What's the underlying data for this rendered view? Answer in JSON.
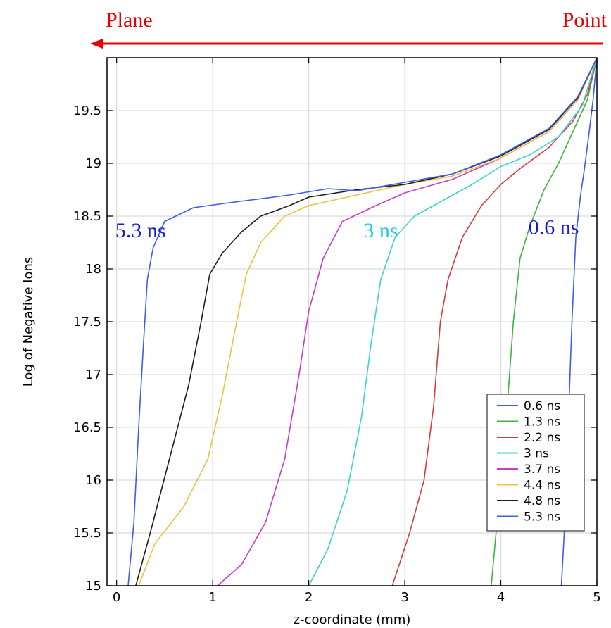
{
  "header": {
    "left_label": "Plane",
    "right_label": "Point",
    "label_color": "#e60000",
    "arrow_color": "#e60000"
  },
  "annotations": [
    {
      "text": "5.3 ns",
      "color": "#1a1ad6",
      "x": 0.25,
      "y": 18.3
    },
    {
      "text": "3 ns",
      "color": "#1ec8e6",
      "x": 2.75,
      "y": 18.3
    },
    {
      "text": "0.6 ns",
      "color": "#1a1ad6",
      "x": 4.55,
      "y": 18.33
    }
  ],
  "chart_data": {
    "type": "line",
    "title": "",
    "xlabel": "z-coordinate (mm)",
    "ylabel": "Log of Negative Ions",
    "xlim": [
      -0.1,
      5
    ],
    "ylim": [
      15,
      20
    ],
    "xticks": [
      0,
      1,
      2,
      3,
      4,
      5
    ],
    "yticks": [
      15,
      15.5,
      16,
      16.5,
      17,
      17.5,
      18,
      18.5,
      19,
      19.5
    ],
    "grid": true,
    "legend_position": "bottom-right",
    "series": [
      {
        "name": "0.6 ns",
        "color": "#3c5ee8",
        "points": [
          [
            4.63,
            15
          ],
          [
            4.66,
            15.5
          ],
          [
            4.7,
            16.5
          ],
          [
            4.74,
            17.5
          ],
          [
            4.78,
            18.3
          ],
          [
            4.83,
            18.7
          ],
          [
            4.87,
            18.95
          ],
          [
            4.92,
            19.3
          ],
          [
            4.96,
            19.6
          ],
          [
            5.0,
            20.0
          ]
        ]
      },
      {
        "name": "1.3 ns",
        "color": "#3cb43c",
        "points": [
          [
            3.9,
            15
          ],
          [
            3.95,
            15.5
          ],
          [
            4.05,
            16.5
          ],
          [
            4.13,
            17.5
          ],
          [
            4.2,
            18.1
          ],
          [
            4.3,
            18.4
          ],
          [
            4.45,
            18.75
          ],
          [
            4.6,
            19.0
          ],
          [
            4.75,
            19.3
          ],
          [
            4.9,
            19.6
          ],
          [
            5.0,
            20.0
          ]
        ]
      },
      {
        "name": "2.2 ns",
        "color": "#d43c3c",
        "points": [
          [
            2.87,
            15
          ],
          [
            3.05,
            15.5
          ],
          [
            3.2,
            16.0
          ],
          [
            3.3,
            16.7
          ],
          [
            3.37,
            17.5
          ],
          [
            3.45,
            17.9
          ],
          [
            3.6,
            18.3
          ],
          [
            3.8,
            18.6
          ],
          [
            4.0,
            18.8
          ],
          [
            4.2,
            18.95
          ],
          [
            4.5,
            19.15
          ],
          [
            4.75,
            19.4
          ],
          [
            4.9,
            19.65
          ],
          [
            5.0,
            20.0
          ]
        ]
      },
      {
        "name": "3 ns",
        "color": "#3cd2d2",
        "points": [
          [
            2.0,
            15
          ],
          [
            2.2,
            15.35
          ],
          [
            2.4,
            15.9
          ],
          [
            2.55,
            16.6
          ],
          [
            2.65,
            17.3
          ],
          [
            2.75,
            17.9
          ],
          [
            2.9,
            18.3
          ],
          [
            3.1,
            18.5
          ],
          [
            3.4,
            18.65
          ],
          [
            3.7,
            18.8
          ],
          [
            4.0,
            18.97
          ],
          [
            4.3,
            19.08
          ],
          [
            4.6,
            19.25
          ],
          [
            4.85,
            19.55
          ],
          [
            5.0,
            20.0
          ]
        ]
      },
      {
        "name": "3.7 ns",
        "color": "#c83cc8",
        "points": [
          [
            1.05,
            15
          ],
          [
            1.3,
            15.2
          ],
          [
            1.55,
            15.6
          ],
          [
            1.75,
            16.2
          ],
          [
            1.9,
            17.0
          ],
          [
            2.0,
            17.6
          ],
          [
            2.15,
            18.1
          ],
          [
            2.35,
            18.45
          ],
          [
            2.7,
            18.6
          ],
          [
            3.0,
            18.72
          ],
          [
            3.5,
            18.85
          ],
          [
            4.0,
            19.05
          ],
          [
            4.5,
            19.3
          ],
          [
            4.8,
            19.6
          ],
          [
            5.0,
            20.0
          ]
        ]
      },
      {
        "name": "4.4 ns",
        "color": "#f0c040",
        "points": [
          [
            0.23,
            15
          ],
          [
            0.4,
            15.4
          ],
          [
            0.7,
            15.75
          ],
          [
            0.95,
            16.2
          ],
          [
            1.1,
            16.8
          ],
          [
            1.25,
            17.5
          ],
          [
            1.35,
            17.95
          ],
          [
            1.5,
            18.25
          ],
          [
            1.75,
            18.5
          ],
          [
            2.0,
            18.6
          ],
          [
            2.5,
            18.7
          ],
          [
            3.0,
            18.8
          ],
          [
            3.5,
            18.88
          ],
          [
            4.0,
            19.05
          ],
          [
            4.5,
            19.3
          ],
          [
            4.8,
            19.6
          ],
          [
            5.0,
            20.0
          ]
        ]
      },
      {
        "name": "4.8 ns",
        "color": "#1e1e1e",
        "points": [
          [
            0.2,
            15
          ],
          [
            0.35,
            15.5
          ],
          [
            0.55,
            16.2
          ],
          [
            0.75,
            16.9
          ],
          [
            0.88,
            17.5
          ],
          [
            0.97,
            17.95
          ],
          [
            1.1,
            18.15
          ],
          [
            1.3,
            18.35
          ],
          [
            1.5,
            18.5
          ],
          [
            1.8,
            18.6
          ],
          [
            2.0,
            18.68
          ],
          [
            2.5,
            18.75
          ],
          [
            3.0,
            18.8
          ],
          [
            3.5,
            18.9
          ],
          [
            4.0,
            19.07
          ],
          [
            4.5,
            19.32
          ],
          [
            4.8,
            19.62
          ],
          [
            5.0,
            20.0
          ]
        ]
      },
      {
        "name": "5.3 ns",
        "color": "#3c5ee8",
        "points": [
          [
            0.12,
            15
          ],
          [
            0.18,
            15.6
          ],
          [
            0.23,
            16.5
          ],
          [
            0.28,
            17.3
          ],
          [
            0.32,
            17.9
          ],
          [
            0.38,
            18.2
          ],
          [
            0.5,
            18.45
          ],
          [
            0.8,
            18.58
          ],
          [
            1.2,
            18.63
          ],
          [
            1.8,
            18.7
          ],
          [
            2.2,
            18.76
          ],
          [
            2.5,
            18.74
          ],
          [
            3.0,
            18.82
          ],
          [
            3.5,
            18.9
          ],
          [
            4.0,
            19.08
          ],
          [
            4.5,
            19.33
          ],
          [
            4.8,
            19.63
          ],
          [
            5.0,
            20.0
          ]
        ]
      }
    ]
  }
}
